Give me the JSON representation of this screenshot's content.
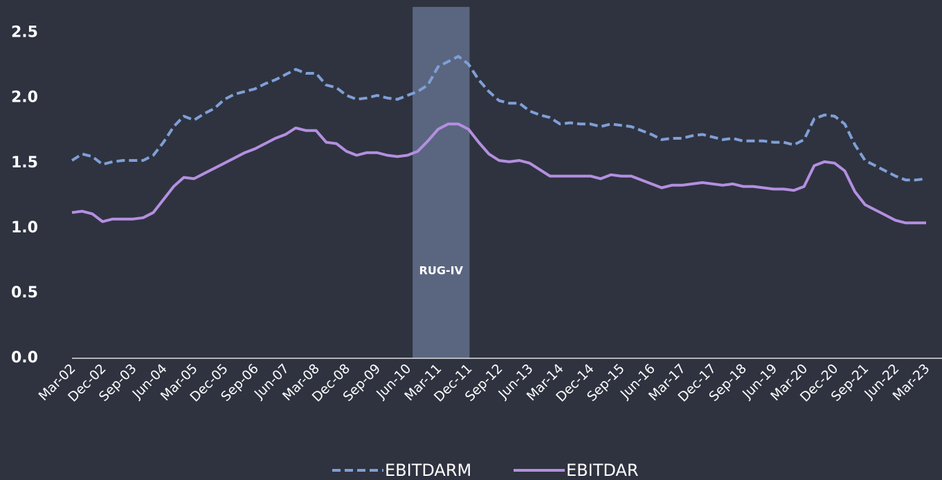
{
  "chart_data": {
    "type": "line",
    "categories": [
      "Mar-02",
      null,
      null,
      "Dec-02",
      null,
      null,
      "Sep-03",
      null,
      null,
      "Jun-04",
      null,
      null,
      "Mar-05",
      null,
      null,
      "Dec-05",
      null,
      null,
      "Sep-06",
      null,
      null,
      "Jun-07",
      null,
      null,
      "Mar-08",
      null,
      null,
      "Dec-08",
      null,
      null,
      "Sep-09",
      null,
      null,
      "Jun-10",
      null,
      null,
      "Mar-11",
      null,
      null,
      "Dec-11",
      null,
      null,
      "Sep-12",
      null,
      null,
      "Jun-13",
      null,
      null,
      "Mar-14",
      null,
      null,
      "Dec-14",
      null,
      null,
      "Sep-15",
      null,
      null,
      "Jun-16",
      null,
      null,
      "Mar-17",
      null,
      null,
      "Dec-17",
      null,
      null,
      "Sep-18",
      null,
      null,
      "Jun-19",
      null,
      null,
      "Mar-20",
      null,
      null,
      "Dec-20",
      null,
      null,
      "Sep-21",
      null,
      null,
      "Jun-22",
      null,
      null,
      "Mar-23"
    ],
    "series": [
      {
        "name": "EBITDARM",
        "color": "#7f9fd6",
        "dashed": true,
        "values": [
          1.52,
          1.57,
          1.55,
          1.49,
          1.51,
          1.52,
          1.52,
          1.52,
          1.56,
          1.66,
          1.78,
          1.86,
          1.83,
          1.88,
          1.92,
          1.99,
          2.03,
          2.05,
          2.07,
          2.11,
          2.14,
          2.18,
          2.22,
          2.19,
          2.19,
          2.1,
          2.08,
          2.02,
          1.99,
          2.0,
          2.02,
          2.0,
          1.99,
          2.02,
          2.05,
          2.1,
          2.24,
          2.28,
          2.32,
          2.26,
          2.14,
          2.05,
          1.98,
          1.96,
          1.96,
          1.9,
          1.87,
          1.85,
          1.8,
          1.81,
          1.8,
          1.8,
          1.78,
          1.8,
          1.79,
          1.78,
          1.75,
          1.72,
          1.68,
          1.69,
          1.69,
          1.71,
          1.72,
          1.7,
          1.68,
          1.69,
          1.67,
          1.67,
          1.67,
          1.66,
          1.66,
          1.64,
          1.68,
          1.84,
          1.87,
          1.86,
          1.8,
          1.64,
          1.52,
          1.48,
          1.44,
          1.4,
          1.37,
          1.37,
          1.38
        ]
      },
      {
        "name": "EBITDAR",
        "color": "#b48fe0",
        "dashed": false,
        "values": [
          1.12,
          1.13,
          1.11,
          1.05,
          1.07,
          1.07,
          1.07,
          1.08,
          1.12,
          1.22,
          1.32,
          1.39,
          1.38,
          1.42,
          1.46,
          1.5,
          1.54,
          1.58,
          1.61,
          1.65,
          1.69,
          1.72,
          1.77,
          1.75,
          1.75,
          1.66,
          1.65,
          1.59,
          1.56,
          1.58,
          1.58,
          1.56,
          1.55,
          1.56,
          1.59,
          1.67,
          1.76,
          1.8,
          1.8,
          1.76,
          1.66,
          1.57,
          1.52,
          1.51,
          1.52,
          1.5,
          1.45,
          1.4,
          1.4,
          1.4,
          1.4,
          1.4,
          1.38,
          1.41,
          1.4,
          1.4,
          1.37,
          1.34,
          1.31,
          1.33,
          1.33,
          1.34,
          1.35,
          1.34,
          1.33,
          1.34,
          1.32,
          1.32,
          1.31,
          1.3,
          1.3,
          1.29,
          1.32,
          1.48,
          1.51,
          1.5,
          1.44,
          1.28,
          1.18,
          1.14,
          1.1,
          1.06,
          1.04,
          1.04,
          1.04
        ]
      }
    ],
    "ylim": [
      0,
      2.7
    ],
    "yticks": [
      {
        "value": 0,
        "label": "0.0"
      },
      0.5,
      {
        "value": 1,
        "label": "1.0"
      },
      1.5,
      {
        "value": 2,
        "label": "2.0"
      },
      2.5
    ],
    "shade": {
      "label": "RUG-IV",
      "start": 33.5,
      "end": 39.1,
      "color": "#5a6680"
    },
    "legend": "bottom"
  }
}
